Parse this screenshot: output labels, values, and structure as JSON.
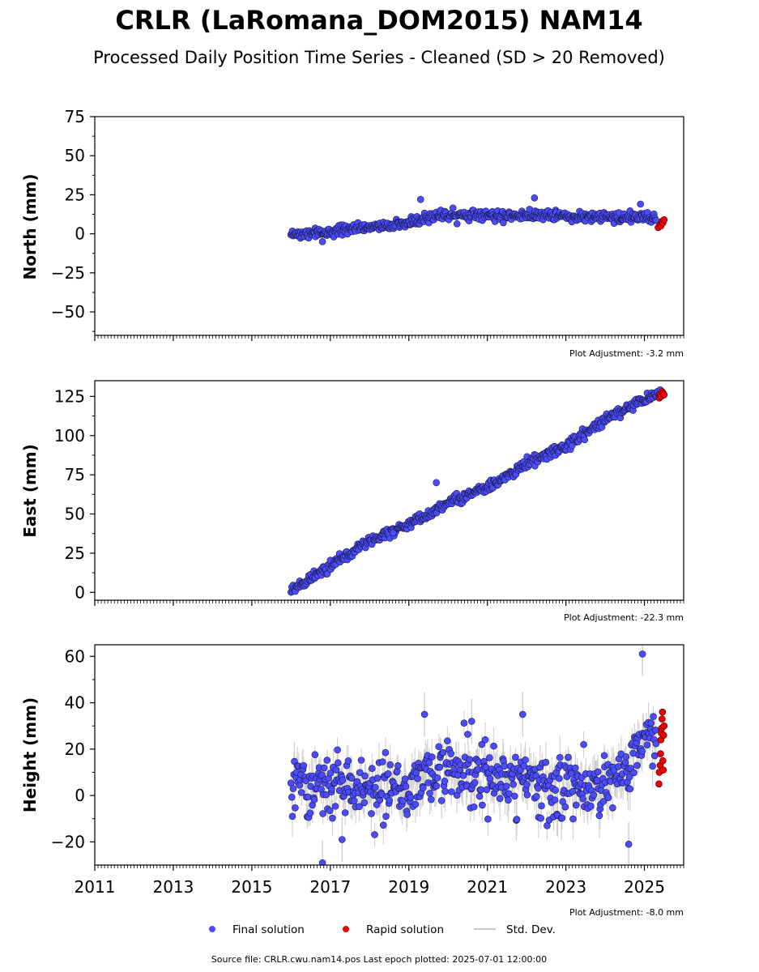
{
  "title": "CRLR (LaRomana_DOM2015) NAM14",
  "subtitle": "Processed Daily Position Time Series - Cleaned (SD > 20 Removed)",
  "x_ticks": [
    "2011",
    "2013",
    "2015",
    "2017",
    "2019",
    "2021",
    "2023",
    "2025"
  ],
  "legend": {
    "final": "Final solution",
    "rapid": "Rapid solution",
    "std": "Std. Dev."
  },
  "footer": "Source file: CRLR.cwu.nam14.pos  Last epoch plotted: 2025-07-01 12:00:00",
  "colors": {
    "final": "#4b4bff",
    "rapid": "#ee0000",
    "std": "#c8c8c8"
  },
  "chart_data": [
    {
      "type": "scatter",
      "ylabel": "North (mm)",
      "adjustment": "Plot Adjustment: -3.2 mm",
      "xlim": [
        2011.0,
        2026.0
      ],
      "ylim": [
        -65,
        75
      ],
      "yticks": [
        "75",
        "50",
        "25",
        "0",
        "−25",
        "−50"
      ],
      "ytick_values": [
        75,
        50,
        25,
        0,
        -25,
        -50
      ],
      "trend": [
        [
          2016.0,
          0
        ],
        [
          2017.0,
          1
        ],
        [
          2018.0,
          4
        ],
        [
          2019.0,
          7
        ],
        [
          2019.4,
          10
        ],
        [
          2019.6,
          12
        ],
        [
          2020.5,
          12
        ],
        [
          2021.5,
          12
        ],
        [
          2022.5,
          12
        ],
        [
          2023.5,
          11
        ],
        [
          2024.5,
          11
        ],
        [
          2025.3,
          10
        ]
      ],
      "noise_sd": 1.6,
      "std_dev": 1.5,
      "outliers": [
        [
          2016.8,
          -5
        ],
        [
          2019.3,
          22
        ],
        [
          2022.2,
          23
        ],
        [
          2024.9,
          19
        ]
      ],
      "rapid": [
        [
          2025.35,
          4
        ],
        [
          2025.4,
          6
        ],
        [
          2025.42,
          5
        ],
        [
          2025.45,
          8
        ],
        [
          2025.47,
          7
        ],
        [
          2025.5,
          9
        ]
      ]
    },
    {
      "type": "scatter",
      "ylabel": "East (mm)",
      "adjustment": "Plot Adjustment: -22.3 mm",
      "xlim": [
        2011.0,
        2026.0
      ],
      "ylim": [
        -5,
        135
      ],
      "yticks": [
        "125",
        "100",
        "75",
        "50",
        "25",
        "0"
      ],
      "ytick_values": [
        125,
        100,
        75,
        50,
        25,
        0
      ],
      "trend": [
        [
          2016.0,
          1
        ],
        [
          2017.0,
          17
        ],
        [
          2018.0,
          33
        ],
        [
          2019.0,
          43
        ],
        [
          2020.0,
          57
        ],
        [
          2021.0,
          67
        ],
        [
          2022.0,
          82
        ],
        [
          2023.0,
          93
        ],
        [
          2024.0,
          110
        ],
        [
          2025.0,
          124
        ],
        [
          2025.4,
          127
        ]
      ],
      "noise_sd": 1.6,
      "std_dev": 1.6,
      "outliers": [
        [
          2019.7,
          70
        ],
        [
          2018.6,
          38
        ]
      ],
      "rapid": [
        [
          2025.38,
          124
        ],
        [
          2025.4,
          126
        ],
        [
          2025.43,
          125
        ],
        [
          2025.45,
          128
        ],
        [
          2025.48,
          127
        ],
        [
          2025.5,
          126
        ]
      ]
    },
    {
      "type": "scatter",
      "ylabel": "Height (mm)",
      "adjustment": "Plot Adjustment: -8.0 mm",
      "xlim": [
        2011.0,
        2026.0
      ],
      "ylim": [
        -30,
        65
      ],
      "yticks": [
        "60",
        "40",
        "20",
        "0",
        "−20"
      ],
      "ytick_values": [
        60,
        40,
        20,
        0,
        -20
      ],
      "trend": [
        [
          2016.0,
          8
        ],
        [
          2017.0,
          5
        ],
        [
          2018.0,
          3
        ],
        [
          2019.0,
          4
        ],
        [
          2019.6,
          9
        ],
        [
          2020.5,
          12
        ],
        [
          2021.0,
          7
        ],
        [
          2022.0,
          5
        ],
        [
          2023.0,
          3
        ],
        [
          2024.0,
          5
        ],
        [
          2024.6,
          10
        ],
        [
          2024.8,
          22
        ],
        [
          2025.3,
          27
        ]
      ],
      "noise_sd": 6.5,
      "std_dev": 6.0,
      "outliers": [
        [
          2016.8,
          -29
        ],
        [
          2024.95,
          61
        ],
        [
          2024.6,
          -21
        ],
        [
          2019.4,
          35
        ],
        [
          2021.9,
          35
        ],
        [
          2017.3,
          -19
        ],
        [
          2020.6,
          32
        ]
      ],
      "rapid": [
        [
          2025.37,
          5
        ],
        [
          2025.38,
          10
        ],
        [
          2025.4,
          13
        ],
        [
          2025.41,
          18
        ],
        [
          2025.42,
          24
        ],
        [
          2025.43,
          27
        ],
        [
          2025.44,
          29
        ],
        [
          2025.45,
          33
        ],
        [
          2025.46,
          36
        ],
        [
          2025.47,
          15
        ],
        [
          2025.48,
          11
        ],
        [
          2025.49,
          26
        ],
        [
          2025.5,
          30
        ]
      ]
    }
  ]
}
